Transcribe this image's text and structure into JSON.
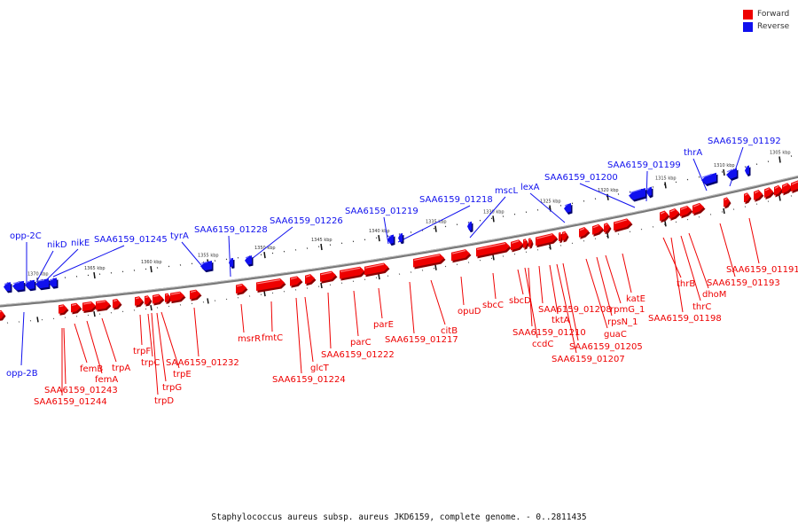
{
  "legend": {
    "forward_label": "Forward",
    "reverse_label": "Reverse",
    "forward_color": "#ee0000",
    "reverse_color": "#1010ee"
  },
  "caption": "Staphylococcus aureus subsp. aureus JKD6159, complete genome. - 0..2811435",
  "ticks": [
    "1305 kbp",
    "1310 kbp",
    "1315 kbp",
    "1320 kbp",
    "1325 kbp",
    "1330 kbp",
    "1335 kbp",
    "1340 kbp",
    "1345 kbp",
    "1350 kbp",
    "1355 kbp",
    "1360 kbp",
    "1365 kbp",
    "1370 kbp"
  ],
  "reverse_labels": [
    "opp-2C",
    "nikD",
    "nikE",
    "SAA6159_01245",
    "tyrA",
    "SAA6159_01228",
    "SAA6159_01226",
    "SAA6159_01219",
    "SAA6159_01218",
    "mscL",
    "lexA",
    "SAA6159_01200",
    "SAA6159_01199",
    "thrA",
    "SAA6159_01192",
    "opp-2B"
  ],
  "forward_labels": [
    "femB",
    "femA",
    "trpA",
    "SAA6159_01243",
    "SAA6159_01244",
    "trpF",
    "trpC",
    "trpE",
    "trpG",
    "trpD",
    "SAA6159_01232",
    "msrR",
    "fmtC",
    "glcT",
    "SAA6159_01224",
    "SAA6159_01222",
    "parC",
    "parE",
    "SAA6159_01217",
    "citB",
    "opuD",
    "sbcC",
    "sbcD",
    "SAA6159_01208",
    "SAA6159_01210",
    "tktA",
    "ccdC",
    "SAA6159_01205",
    "SAA6159_01207",
    "guaC",
    "rpsN_1",
    "rpmG_1",
    "katE",
    "SAA6159_01198",
    "thrB",
    "thrC",
    "dhoM",
    "SAA6159_01193",
    "SAA6159_01191"
  ]
}
